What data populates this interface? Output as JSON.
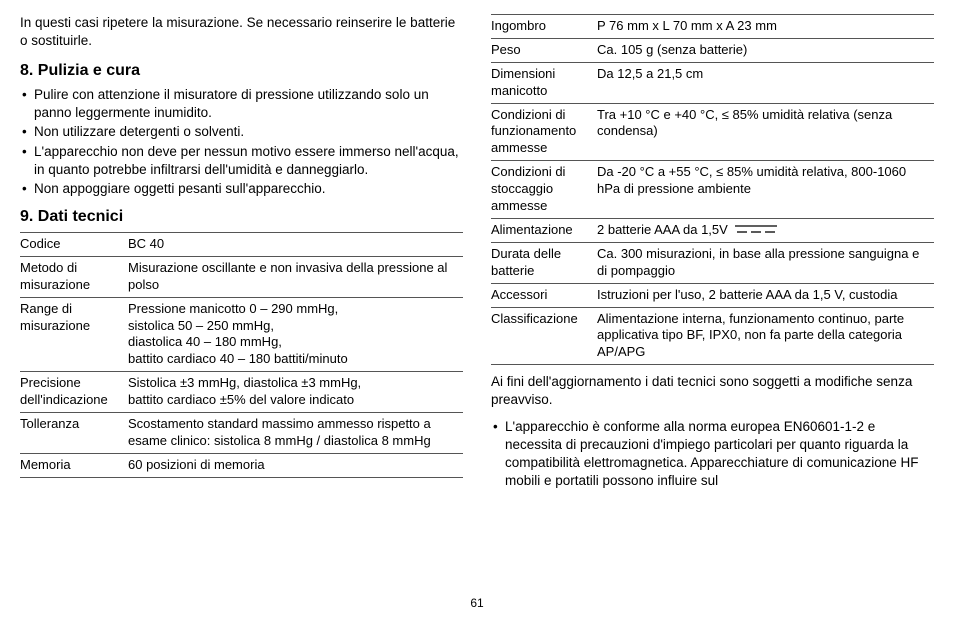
{
  "intro": "In questi casi ripetere la misurazione. Se necessario reinserire le batterie o sostituirle.",
  "section8": {
    "heading": "8. Pulizia e cura",
    "items": [
      "Pulire con attenzione il misuratore di pressione utilizzando solo un panno leggermente inumidito.",
      "Non utilizzare detergenti o solventi.",
      "L'apparecchio non deve per nessun motivo essere immerso nell'acqua, in quanto potrebbe infiltrarsi dell'umidità e danneggiarlo.",
      "Non appoggiare oggetti pesanti sull'apparecchio."
    ]
  },
  "section9": {
    "heading": "9. Dati tecnici"
  },
  "tableLeft": [
    {
      "label": "Codice",
      "value": "BC 40"
    },
    {
      "label": "Metodo di misurazione",
      "value": "Misurazione oscillante e non invasiva della pressione al polso"
    },
    {
      "label": "Range di misurazione",
      "value": "Pressione manicotto 0 – 290 mmHg,\nsistolica 50 – 250 mmHg,\ndiastolica 40 – 180 mmHg,\nbattito cardiaco 40 – 180 battiti/minuto"
    },
    {
      "label": "Precisione dell'indicazione",
      "value": "Sistolica ±3 mmHg, diastolica ±3 mmHg,\nbattito cardiaco ±5% del valore indicato"
    },
    {
      "label": "Tolleranza",
      "value": "Scostamento standard massimo ammesso rispetto a esame clinico: sistolica 8 mmHg / diastolica 8 mmHg"
    },
    {
      "label": "Memoria",
      "value": "60 posizioni di memoria"
    }
  ],
  "tableRight": [
    {
      "label": "Ingombro",
      "value": "P 76 mm x L 70 mm x A 23 mm"
    },
    {
      "label": "Peso",
      "value": "Ca. 105 g (senza batterie)"
    },
    {
      "label": "Dimensioni manicotto",
      "value": "Da 12,5 a 21,5 cm"
    },
    {
      "label": "Condizioni di funzionamento ammesse",
      "value": "Tra +10 °C e +40 °C, ≤ 85% umidità relativa (senza condensa)"
    },
    {
      "label": "Condizioni di stoccaggio ammesse",
      "value": "Da -20 °C a +55 °C, ≤ 85% umidità relativa, 800-1060 hPa di pressione ambiente"
    },
    {
      "label": "Alimentazione",
      "value": "2 batterie AAA da 1,5V",
      "dcSymbol": true
    },
    {
      "label": "Durata delle batterie",
      "value": "Ca. 300 misurazioni, in base alla pressione sanguigna e di pompaggio"
    },
    {
      "label": "Accessori",
      "value": "Istruzioni per l'uso, 2 batterie AAA da 1,5 V, custodia"
    },
    {
      "label": "Classificazione",
      "value": "Alimentazione interna, funzionamento continuo, parte applicativa tipo BF, IPX0, non fa parte della categoria AP/APG"
    }
  ],
  "afterTable": "Ai fini dell'aggiornamento i dati tecnici sono soggetti a modifiche senza preavviso.",
  "complianceItems": [
    "L'apparecchio è conforme alla norma europea EN60601-1-2 e necessita di precauzioni d'impiego particolari per quanto riguarda la compatibilità elettromagnetica. Apparecchiature di comunicazione HF mobili e portatili possono influire sul"
  ],
  "pageNumber": "61"
}
